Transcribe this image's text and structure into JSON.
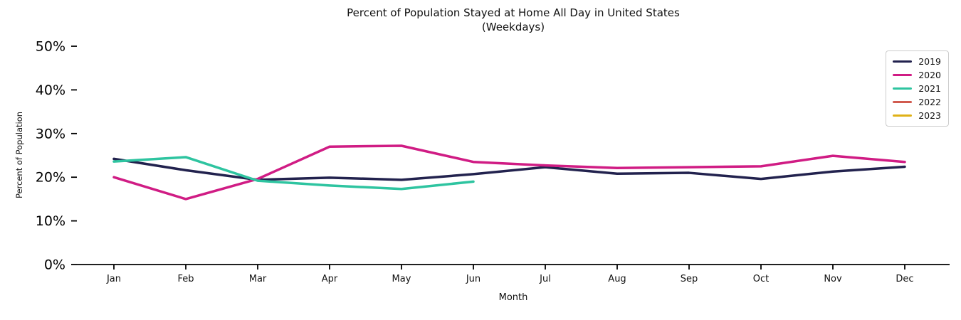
{
  "title": "Percent of Population Stayed at Home All Day in United States",
  "subtitle": "(Weekdays)",
  "chart_data": {
    "type": "line",
    "title": "Percent of Population Stayed at Home All Day in United States",
    "subtitle": "(Weekdays)",
    "xlabel": "Month",
    "ylabel": "Percent of Population",
    "categories": [
      "Jan",
      "Feb",
      "Mar",
      "Apr",
      "May",
      "Jun",
      "Jul",
      "Aug",
      "Sep",
      "Oct",
      "Nov",
      "Dec"
    ],
    "ylim": [
      0,
      50
    ],
    "yticks": [
      0,
      10,
      20,
      30,
      40,
      50
    ],
    "ytick_labels": [
      "0%",
      "10%",
      "20%",
      "30%",
      "40%",
      "50%"
    ],
    "grid": false,
    "legend_position": "upper right",
    "legend_border_color": "#cccccc",
    "axis_color": "#000000",
    "series": [
      {
        "name": "2019",
        "color": "#22224e",
        "values": [
          24.2,
          21.6,
          19.4,
          19.9,
          19.4,
          20.7,
          22.3,
          20.8,
          21.0,
          19.6,
          21.3,
          22.4
        ]
      },
      {
        "name": "2020",
        "color": "#d01c84",
        "values": [
          20.0,
          15.0,
          19.6,
          27.0,
          27.2,
          23.5,
          22.7,
          22.1,
          22.3,
          22.5,
          24.9,
          23.5
        ]
      },
      {
        "name": "2021",
        "color": "#2ec4a0",
        "values": [
          23.6,
          24.6,
          19.2,
          18.1,
          17.3,
          19.0,
          null,
          null,
          null,
          null,
          null,
          null
        ]
      },
      {
        "name": "2022",
        "color": "#d15b4f",
        "values": [
          null,
          null,
          null,
          null,
          null,
          null,
          null,
          null,
          null,
          null,
          null,
          null
        ]
      },
      {
        "name": "2023",
        "color": "#dfb117",
        "values": [
          null,
          null,
          null,
          null,
          null,
          null,
          null,
          null,
          null,
          null,
          null,
          null
        ]
      }
    ]
  }
}
